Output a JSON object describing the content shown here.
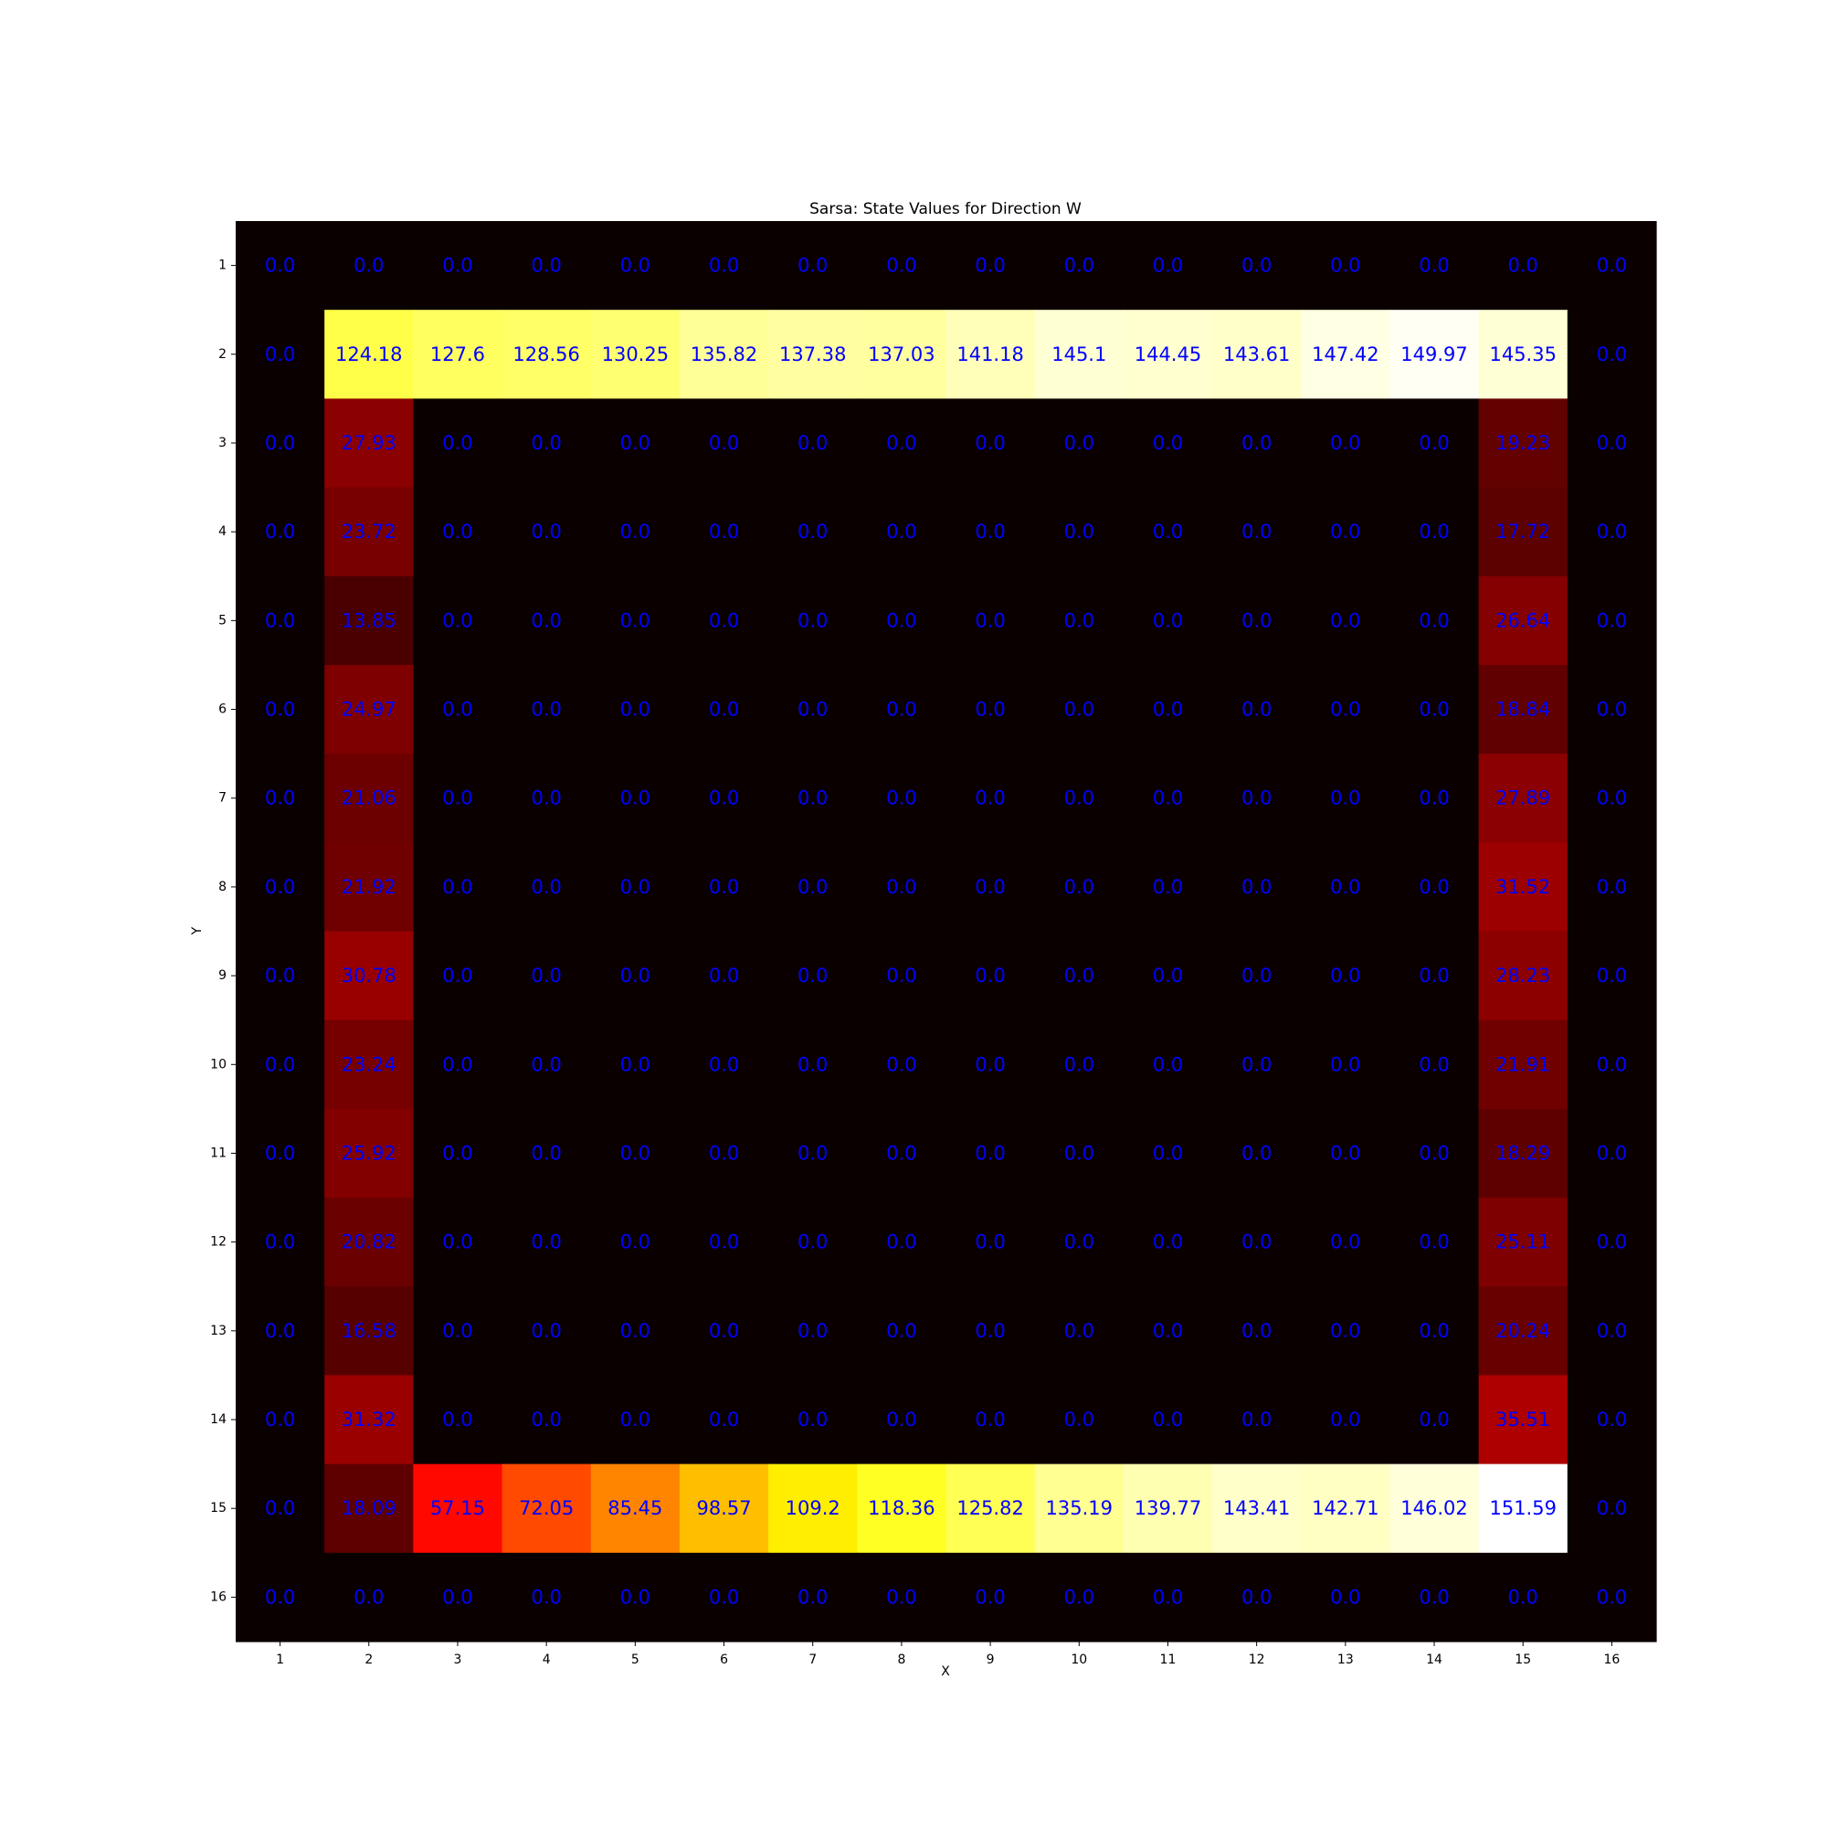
{
  "chart_data": {
    "type": "heatmap",
    "title": "Sarsa: State Values for Direction W",
    "xlabel": "X",
    "ylabel": "Y",
    "x_ticks": [
      "1",
      "2",
      "3",
      "4",
      "5",
      "6",
      "7",
      "8",
      "9",
      "10",
      "11",
      "12",
      "13",
      "14",
      "15",
      "16"
    ],
    "y_ticks": [
      "1",
      "2",
      "3",
      "4",
      "5",
      "6",
      "7",
      "8",
      "9",
      "10",
      "11",
      "12",
      "13",
      "14",
      "15",
      "16"
    ],
    "colormap": "hot",
    "value_range": [
      0,
      151.59
    ],
    "annotation_color": "#0000ff",
    "values": [
      [
        0.0,
        0.0,
        0.0,
        0.0,
        0.0,
        0.0,
        0.0,
        0.0,
        0.0,
        0.0,
        0.0,
        0.0,
        0.0,
        0.0,
        0.0,
        0.0
      ],
      [
        0.0,
        124.18,
        127.6,
        128.56,
        130.25,
        135.82,
        137.38,
        137.03,
        141.18,
        145.1,
        144.45,
        143.61,
        147.42,
        149.97,
        145.35,
        0.0
      ],
      [
        0.0,
        27.93,
        0.0,
        0.0,
        0.0,
        0.0,
        0.0,
        0.0,
        0.0,
        0.0,
        0.0,
        0.0,
        0.0,
        0.0,
        19.23,
        0.0
      ],
      [
        0.0,
        23.72,
        0.0,
        0.0,
        0.0,
        0.0,
        0.0,
        0.0,
        0.0,
        0.0,
        0.0,
        0.0,
        0.0,
        0.0,
        17.72,
        0.0
      ],
      [
        0.0,
        13.85,
        0.0,
        0.0,
        0.0,
        0.0,
        0.0,
        0.0,
        0.0,
        0.0,
        0.0,
        0.0,
        0.0,
        0.0,
        26.64,
        0.0
      ],
      [
        0.0,
        24.97,
        0.0,
        0.0,
        0.0,
        0.0,
        0.0,
        0.0,
        0.0,
        0.0,
        0.0,
        0.0,
        0.0,
        0.0,
        18.84,
        0.0
      ],
      [
        0.0,
        21.06,
        0.0,
        0.0,
        0.0,
        0.0,
        0.0,
        0.0,
        0.0,
        0.0,
        0.0,
        0.0,
        0.0,
        0.0,
        27.89,
        0.0
      ],
      [
        0.0,
        21.92,
        0.0,
        0.0,
        0.0,
        0.0,
        0.0,
        0.0,
        0.0,
        0.0,
        0.0,
        0.0,
        0.0,
        0.0,
        31.52,
        0.0
      ],
      [
        0.0,
        30.78,
        0.0,
        0.0,
        0.0,
        0.0,
        0.0,
        0.0,
        0.0,
        0.0,
        0.0,
        0.0,
        0.0,
        0.0,
        28.23,
        0.0
      ],
      [
        0.0,
        23.24,
        0.0,
        0.0,
        0.0,
        0.0,
        0.0,
        0.0,
        0.0,
        0.0,
        0.0,
        0.0,
        0.0,
        0.0,
        21.91,
        0.0
      ],
      [
        0.0,
        25.92,
        0.0,
        0.0,
        0.0,
        0.0,
        0.0,
        0.0,
        0.0,
        0.0,
        0.0,
        0.0,
        0.0,
        0.0,
        18.29,
        0.0
      ],
      [
        0.0,
        20.82,
        0.0,
        0.0,
        0.0,
        0.0,
        0.0,
        0.0,
        0.0,
        0.0,
        0.0,
        0.0,
        0.0,
        0.0,
        25.11,
        0.0
      ],
      [
        0.0,
        16.58,
        0.0,
        0.0,
        0.0,
        0.0,
        0.0,
        0.0,
        0.0,
        0.0,
        0.0,
        0.0,
        0.0,
        0.0,
        20.24,
        0.0
      ],
      [
        0.0,
        31.32,
        0.0,
        0.0,
        0.0,
        0.0,
        0.0,
        0.0,
        0.0,
        0.0,
        0.0,
        0.0,
        0.0,
        0.0,
        35.51,
        0.0
      ],
      [
        0.0,
        18.09,
        57.15,
        72.05,
        85.45,
        98.57,
        109.2,
        118.36,
        125.82,
        135.19,
        139.77,
        143.41,
        142.71,
        146.02,
        151.59,
        0.0
      ],
      [
        0.0,
        0.0,
        0.0,
        0.0,
        0.0,
        0.0,
        0.0,
        0.0,
        0.0,
        0.0,
        0.0,
        0.0,
        0.0,
        0.0,
        0.0,
        0.0
      ]
    ]
  }
}
